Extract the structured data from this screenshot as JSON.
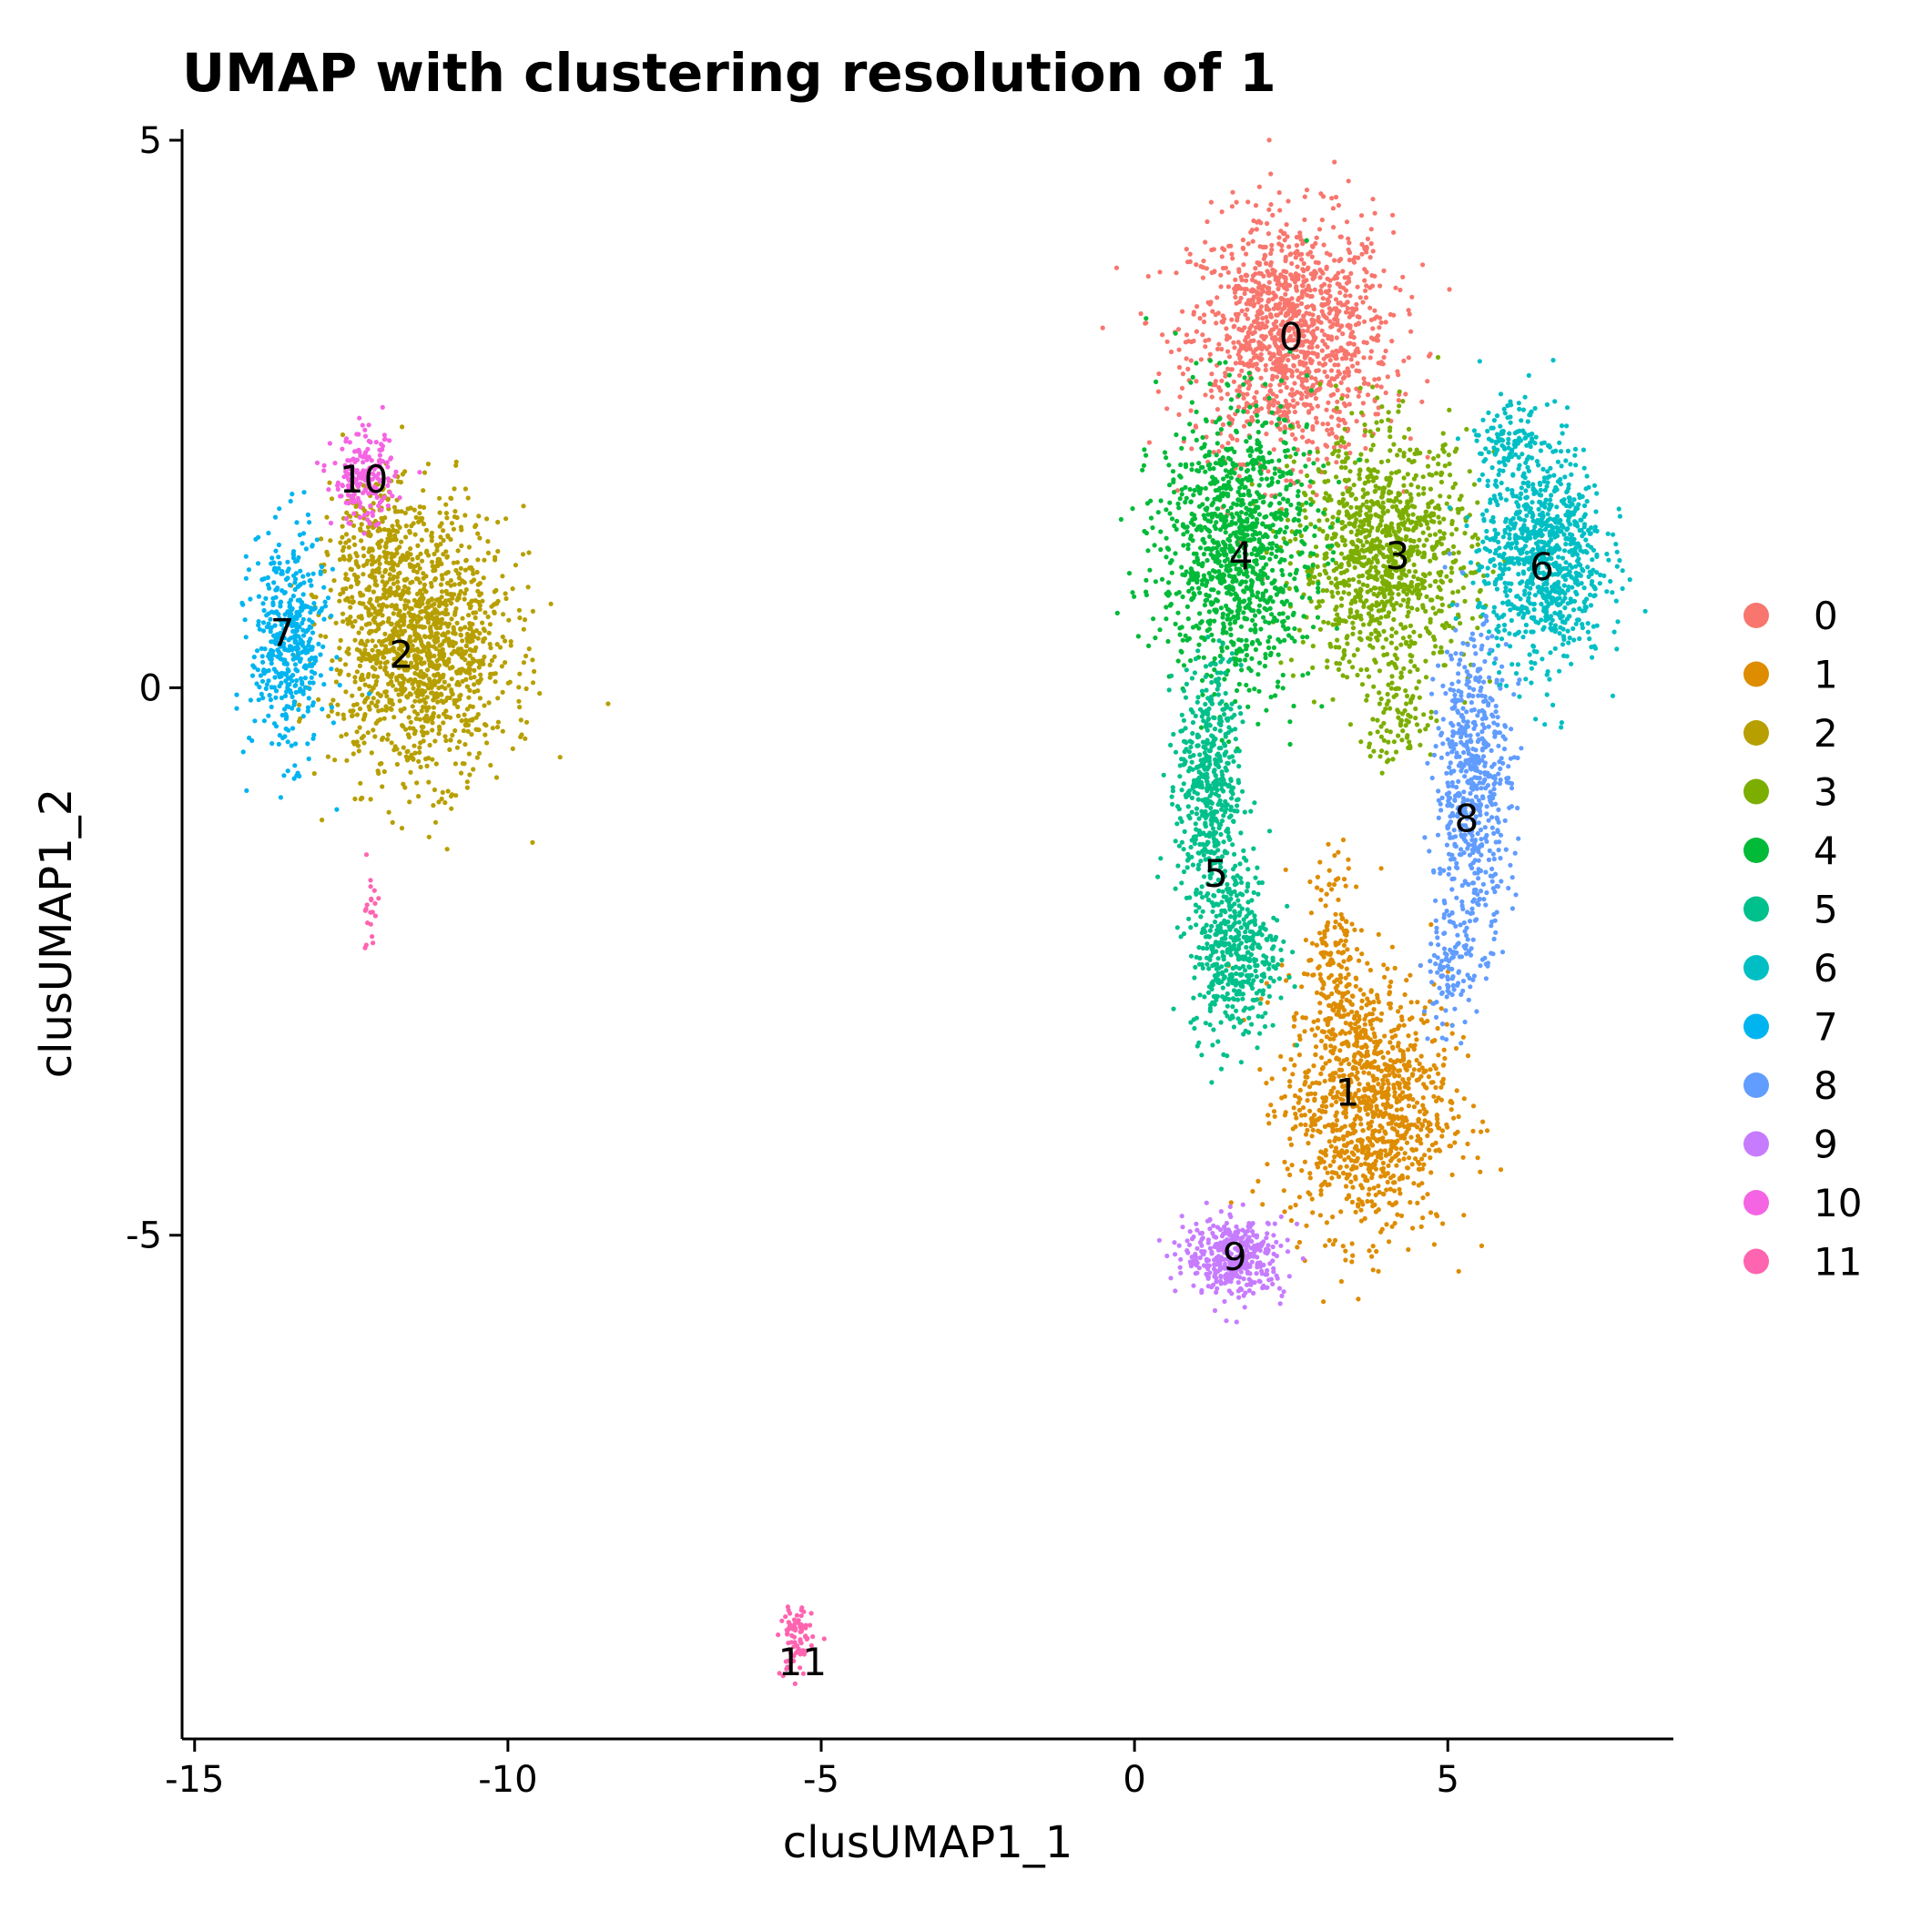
{
  "chart_data": {
    "type": "scatter",
    "title": "UMAP with clustering resolution of 1",
    "xlabel": "clusUMAP1_1",
    "ylabel": "clusUMAP1_2",
    "xlim": [
      -15.2,
      8.6
    ],
    "ylim": [
      -9.6,
      5.1
    ],
    "x_ticks": [
      -15,
      -10,
      -5,
      0,
      5
    ],
    "x_tick_labels": [
      "-15",
      "-10",
      "-5",
      "0",
      "5"
    ],
    "y_ticks": [
      5,
      0,
      -5
    ],
    "y_tick_labels": [
      "5",
      "0",
      "-5"
    ],
    "grid": false,
    "legend_position": "right",
    "legend": [
      "0",
      "1",
      "2",
      "3",
      "4",
      "5",
      "6",
      "7",
      "8",
      "9",
      "10",
      "11"
    ],
    "series": [
      {
        "name": "0",
        "color": "#F8766D",
        "label": "0",
        "label_at": [
          2.5,
          3.2
        ],
        "blobs": [
          [
            2.5,
            3.2,
            1.6,
            1.1,
            1300
          ]
        ]
      },
      {
        "name": "1",
        "color": "#DE8C00",
        "label": "1",
        "label_at": [
          3.4,
          -3.7
        ],
        "blobs": [
          [
            3.7,
            -3.8,
            1.3,
            1.2,
            1100
          ],
          [
            3.2,
            -2.4,
            0.4,
            0.9,
            150
          ]
        ]
      },
      {
        "name": "2",
        "color": "#B79F00",
        "label": "2",
        "label_at": [
          -11.7,
          0.3
        ],
        "blobs": [
          [
            -11.4,
            0.4,
            1.4,
            1.2,
            1400
          ],
          [
            -12.2,
            1.4,
            0.7,
            0.6,
            150
          ]
        ]
      },
      {
        "name": "3",
        "color": "#7CAE00",
        "label": "3",
        "label_at": [
          4.2,
          1.2
        ],
        "blobs": [
          [
            4.0,
            1.2,
            1.4,
            1.1,
            1100
          ],
          [
            4.2,
            -0.3,
            0.6,
            0.4,
            80
          ]
        ]
      },
      {
        "name": "4",
        "color": "#00BA38",
        "label": "4",
        "label_at": [
          1.7,
          1.2
        ],
        "blobs": [
          [
            1.6,
            1.3,
            1.2,
            1.3,
            1100
          ]
        ]
      },
      {
        "name": "5",
        "color": "#00C08B",
        "label": "5",
        "label_at": [
          1.3,
          -1.7
        ],
        "blobs": [
          [
            1.2,
            -0.9,
            0.5,
            1.1,
            500
          ],
          [
            1.6,
            -2.4,
            0.7,
            0.8,
            450
          ]
        ]
      },
      {
        "name": "6",
        "color": "#00BFC4",
        "label": "6",
        "label_at": [
          6.5,
          1.1
        ],
        "blobs": [
          [
            6.5,
            1.2,
            1.0,
            1.0,
            900
          ],
          [
            6.0,
            2.3,
            0.6,
            0.3,
            100
          ]
        ]
      },
      {
        "name": "7",
        "color": "#00B4F0",
        "label": "7",
        "label_at": [
          -13.6,
          0.5
        ],
        "blobs": [
          [
            -13.5,
            0.4,
            0.6,
            1.0,
            450
          ]
        ]
      },
      {
        "name": "8",
        "color": "#619CFF",
        "label": "8",
        "label_at": [
          5.3,
          -1.2
        ],
        "blobs": [
          [
            5.4,
            -0.9,
            0.6,
            1.4,
            600
          ],
          [
            5.0,
            -2.6,
            0.4,
            0.5,
            100
          ]
        ]
      },
      {
        "name": "9",
        "color": "#C77CFF",
        "label": "9",
        "label_at": [
          1.6,
          -5.2
        ],
        "blobs": [
          [
            1.6,
            -5.2,
            0.8,
            0.35,
            400
          ]
        ]
      },
      {
        "name": "10",
        "color": "#F564E3",
        "label": "10",
        "label_at": [
          -12.3,
          1.9
        ],
        "blobs": [
          [
            -12.3,
            1.9,
            0.5,
            0.4,
            200
          ]
        ]
      },
      {
        "name": "11",
        "color": "#FF64B0",
        "label": "11",
        "label_at": [
          -5.3,
          -8.9
        ],
        "blobs": [
          [
            -5.4,
            -8.7,
            0.25,
            0.35,
            80
          ],
          [
            -12.2,
            -2.0,
            0.15,
            0.4,
            20
          ]
        ]
      }
    ]
  }
}
